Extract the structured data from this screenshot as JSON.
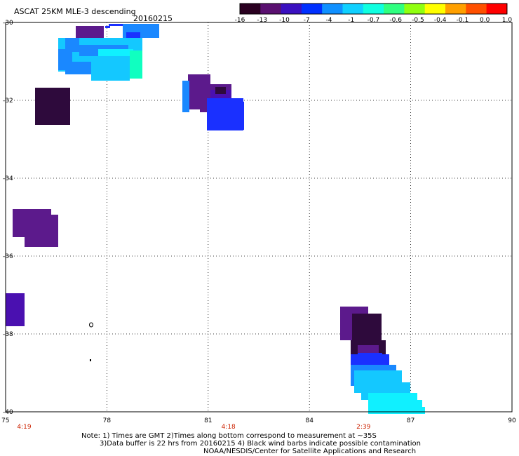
{
  "header": {
    "title": "ASCAT 25KM MLE-3 descending",
    "date": "20160215"
  },
  "colorbar": {
    "labels": [
      "-16",
      "-13",
      "-10",
      "-7",
      "-4",
      "-1",
      "-0.7",
      "-0.6",
      "-0.5",
      "-0.4",
      "-0.1",
      "0.0",
      "1.0"
    ],
    "colors": [
      "#2a0020",
      "#5a1070",
      "#3a10c0",
      "#0030ff",
      "#1090ff",
      "#10d0ff",
      "#10ffe0",
      "#30ff80",
      "#90ff10",
      "#ffff00",
      "#ffa000",
      "#ff5000",
      "#ff0000"
    ]
  },
  "map": {
    "lon_ticks": [
      "75",
      "78",
      "81",
      "84",
      "87",
      "90"
    ],
    "lat_ticks": [
      "-30",
      "-32",
      "-34",
      "-36",
      "-38",
      "-40"
    ],
    "time_labels": [
      {
        "lon": 75.55,
        "text": "4:19"
      },
      {
        "lon": 81.6,
        "text": "4:18"
      },
      {
        "lon": 85.6,
        "text": "2:39"
      }
    ],
    "time_color": "#cc2200",
    "cell_colors": {
      "dark": "#2e0a3c",
      "purple": "#5c1a8c",
      "indigo": "#4a10b0",
      "blue": "#1a30ff",
      "azure": "#1a88ff",
      "sky": "#14c8ff",
      "cyan": "#10f0ff",
      "teal": "#10ffc0"
    }
  },
  "notes": {
    "line1": "Note: 1) Times are GMT 2)Times along bottom correspond to measurement at ~35S",
    "line2": "3)Data buffer is 22 hrs from 20160215 4) Black wind barbs indicate possible contamination",
    "line3": "NOAA/NESDIS/Center for Satellite Applications and Research"
  }
}
